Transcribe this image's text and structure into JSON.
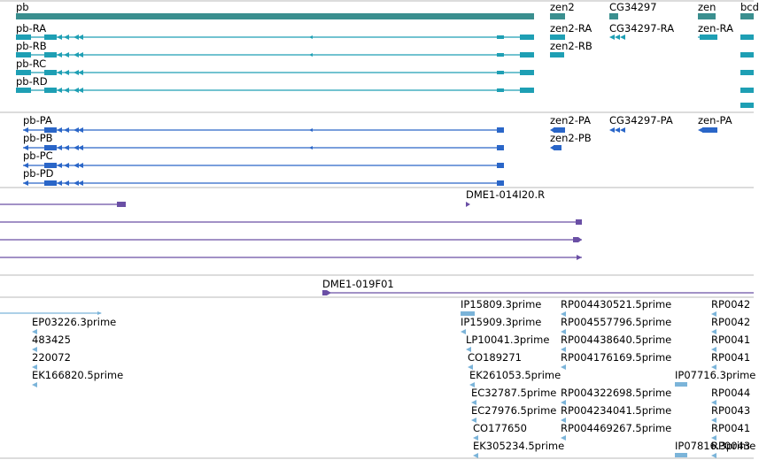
{
  "colors": {
    "gene_teal": "#3a8f8f",
    "transcript_teal": "#1e9fb4",
    "protein_blue": "#2a66c8",
    "clone_purple": "#6a4fa5",
    "est_lightblue": "#7bb4d9",
    "divider": "#b8b8b8"
  },
  "gene_track": {
    "genes": [
      "pb",
      "zen2",
      "CG34297",
      "zen",
      "bcd"
    ]
  },
  "transcript_track": {
    "pb": [
      "pb-RA",
      "pb-RB",
      "pb-RC",
      "pb-RD"
    ],
    "zen2": [
      "zen2-RA",
      "zen2-RB"
    ],
    "cg34297": [
      "CG34297-RA"
    ],
    "zen": [
      "zen-RA"
    ]
  },
  "protein_track": {
    "pb": [
      "pb-PA",
      "pb-PB",
      "pb-PC",
      "pb-PD"
    ],
    "zen2": [
      "zen2-PA",
      "zen2-PB"
    ],
    "cg34297": [
      "CG34297-PA"
    ],
    "zen": [
      "zen-PA"
    ]
  },
  "clone_track": {
    "clones": [
      "DME1-014I20.R",
      "DME1-019F01"
    ]
  },
  "est_track": {
    "left": [
      "EP03226.3prime",
      "483425",
      "220072",
      "EK166820.5prime"
    ],
    "middle": [
      "IP15809.3prime",
      "IP15909.3prime",
      "LP10041.3prime",
      "CO189271",
      "EK261053.5prime",
      "EC32787.5prime",
      "EC27976.5prime",
      "CO177650",
      "EK305234.5prime"
    ],
    "right": [
      "RP004430521.5prime",
      "RP004557796.5prime",
      "RP004438640.5prime",
      "RP004176169.5prime",
      "RP004322698.5prime",
      "RP004234041.5prime",
      "RP004469267.5prime"
    ],
    "far_right": [
      "IP07716.3prime",
      "IP07816.3prime"
    ],
    "edge": [
      "RP0042",
      "RP0042",
      "RP0041",
      "RP0041",
      "RP0044",
      "RP0043",
      "RP0041",
      "RP0043"
    ]
  }
}
